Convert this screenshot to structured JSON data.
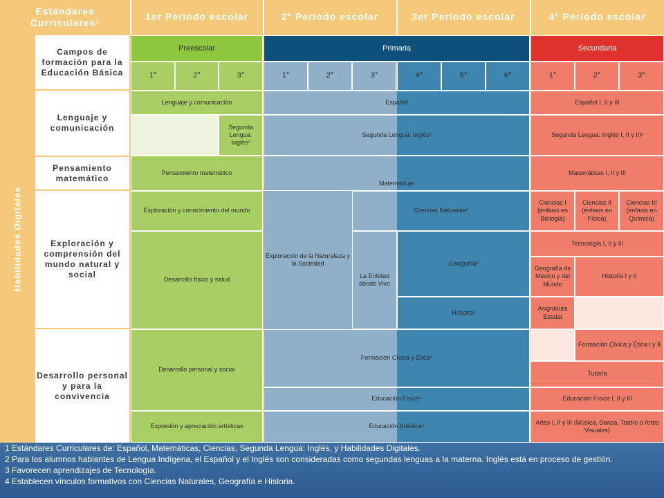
{
  "header": {
    "standards": "Estándares Curriculares¹",
    "periods": [
      "1er Periodo escolar",
      "2° Periodo escolar",
      "3er Periodo escolar",
      "4° Periodo escolar"
    ]
  },
  "side_label": "Habilidades Digitales",
  "levels": {
    "preescolar": "Preescolar",
    "primaria": "Primaria",
    "secundaria": "Secundaria"
  },
  "fields_title": "Campos de formación para la Educación Básica",
  "grades": {
    "preescolar": [
      "1°",
      "2°",
      "3°"
    ],
    "primaria": [
      "1°",
      "2°",
      "3°",
      "4°",
      "5°",
      "6°"
    ],
    "secundaria": [
      "1°",
      "2°",
      "3°"
    ]
  },
  "categories": {
    "lenguaje": "Lenguaje y comunicación",
    "pensamiento": "Pensamiento matemático",
    "exploracion": "Exploración y comprensión del mundo natural y social",
    "desarrollo": "Desarrollo personal y para la convivencia"
  },
  "cells": {
    "lyc": "Lenguaje y comunicación",
    "espanol": "Español",
    "espanol_sec": "Español I, II y III",
    "segunda_pre": "Segunda Lengua: Inglés²",
    "segunda_pri": "Segunda Lengua: Inglés²",
    "segunda_sec": "Segunda Lengua: Inglés I, II y III²",
    "pens_mat": "Pensamiento matemático",
    "matematicas": "Matemáticas",
    "mat_sec": "Matemáticas I, II y III",
    "expl_conoc": "Exploración y conocimiento del mundo",
    "des_fisico": "Desarrollo físico y salud",
    "expl_nat": "Exploración de la Naturaleza y la Sociedad",
    "entidad": "La Entidad donde Vivo",
    "ciencias_nat": "Ciencias Naturales³",
    "geografia": "Geografía³",
    "historia": "Historia³",
    "ciencias_1": "Ciencias I (énfasis en Biología)",
    "ciencias_2": "Ciencias II (énfasis en Física)",
    "ciencias_3": "Ciencias III (énfasis en Química)",
    "tecnologia": "Tecnología I, II y III",
    "geo_mex": "Geografía de México y del Mundo",
    "historia_sec": "Historia I y II",
    "asignatura": "Asignatura Estatal",
    "des_personal": "Desarrollo personal y social",
    "civica": "Formación Cívica y Ética⁴",
    "civica_sec": "Formación Cívica y Ética I y II",
    "tutoria": "Tutoría",
    "ed_fisica": "Educación Física⁴",
    "ed_fisica_sec": "Educación Física I, II y III",
    "expr_art": "Expresión y apreciación artísticas",
    "ed_art": "Educación Artística⁴",
    "artes": "Artes I, II y III (Música, Danza, Teatro o Artes Visuales)"
  },
  "footnotes": [
    "1 Estándares Curriculares de: Español, Matemáticas, Ciencias, Segunda Lengua: Inglés, y Habilidades Digitales.",
    "2 Para los alumnos hablantes de Lengua Indígena, el Español y el Inglés son consideradas como segundas lenguas a la materna. Inglés está en proceso de gestión.",
    "3 Favorecen aprendizajes de Tecnología.",
    "4 Establecen vínculos formativos con Ciencias Naturales, Geografía e Historia."
  ],
  "colors": {
    "orange": "#f4c979",
    "green": "#a8cf64",
    "blue_light": "#8fb0c8",
    "blue_dark": "#3e86b0",
    "navy": "#0f4f7c",
    "salmon": "#f07d69",
    "red": "#e0322c"
  }
}
